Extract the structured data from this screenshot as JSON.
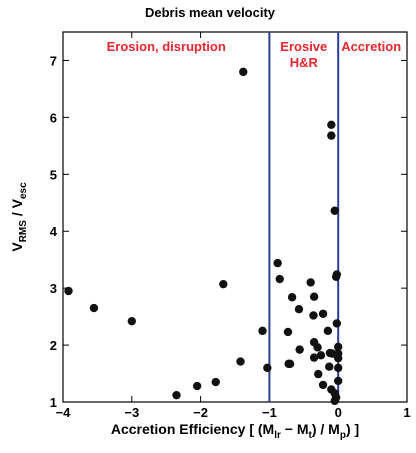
{
  "chart_data": {
    "type": "scatter",
    "title": "Debris mean velocity",
    "xlim": [
      -4,
      1
    ],
    "ylim": [
      1,
      7.5
    ],
    "xticks": [
      "−4",
      "−3",
      "−2",
      "−1",
      "0",
      "1"
    ],
    "yticks": [
      "1",
      "2",
      "3",
      "4",
      "5",
      "6",
      "7"
    ],
    "grid": false,
    "vlines": [
      -1,
      0
    ],
    "vline_color": "#2c3e91",
    "marker_color": "#111111",
    "region_color": "#e8262d",
    "regions": [
      {
        "line1": "Erosion, disruption",
        "line2": ""
      },
      {
        "line1": "Erosive",
        "line2": "H&R"
      },
      {
        "line1": "Accretion",
        "line2": ""
      }
    ],
    "series": [
      {
        "points": [
          [
            -3.92,
            2.95
          ],
          [
            -3.55,
            2.65
          ],
          [
            -3.0,
            2.42
          ],
          [
            -1.67,
            3.07
          ],
          [
            -1.38,
            6.8
          ],
          [
            -1.42,
            1.71
          ],
          [
            -1.1,
            2.25
          ],
          [
            -1.03,
            1.6
          ],
          [
            -1.78,
            1.35
          ],
          [
            -2.05,
            1.28
          ],
          [
            -2.35,
            1.12
          ],
          [
            -0.88,
            3.44
          ],
          [
            -0.85,
            3.16
          ],
          [
            -0.67,
            2.84
          ],
          [
            -0.73,
            2.23
          ],
          [
            -0.57,
            2.63
          ],
          [
            -0.72,
            1.67
          ],
          [
            -0.7,
            1.67
          ],
          [
            -0.56,
            1.92
          ],
          [
            -0.4,
            3.1
          ],
          [
            -0.35,
            2.85
          ],
          [
            -0.36,
            2.52
          ],
          [
            -0.22,
            2.55
          ],
          [
            -0.35,
            2.05
          ],
          [
            -0.3,
            1.96
          ],
          [
            -0.25,
            1.82
          ],
          [
            -0.35,
            1.78
          ],
          [
            -0.29,
            1.49
          ],
          [
            -0.22,
            1.3
          ],
          [
            -0.15,
            2.25
          ],
          [
            -0.12,
            1.86
          ],
          [
            -0.13,
            1.62
          ],
          [
            -0.1,
            1.22
          ],
          [
            -0.05,
            1.15
          ],
          [
            -0.08,
            1.85
          ],
          [
            -0.1,
            5.87
          ],
          [
            -0.1,
            5.68
          ],
          [
            -0.05,
            4.36
          ],
          [
            -0.02,
            3.24
          ],
          [
            -0.03,
            3.2
          ],
          [
            -0.02,
            2.38
          ],
          [
            0.0,
            1.97
          ],
          [
            0.0,
            1.85
          ],
          [
            0.0,
            1.77
          ],
          [
            0.0,
            1.6
          ],
          [
            0.0,
            1.37
          ],
          [
            -0.03,
            1.08
          ],
          [
            -0.05,
            1.02
          ]
        ]
      }
    ]
  }
}
